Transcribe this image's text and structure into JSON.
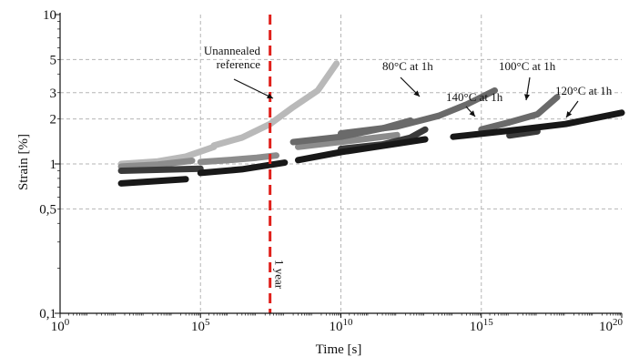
{
  "chart_data": {
    "type": "scatter",
    "xlabel": "Time [s]",
    "ylabel": "Strain [%]",
    "x_scale": "log",
    "y_scale": "log",
    "xlim": [
      1,
      1e+20
    ],
    "ylim": [
      0.1,
      10
    ],
    "grid": true,
    "x_ticks": [
      {
        "value": 1,
        "base": "10",
        "exp": "0"
      },
      {
        "value": 100000,
        "base": "10",
        "exp": "5"
      },
      {
        "value": 10000000000,
        "base": "10",
        "exp": "10"
      },
      {
        "value": 1000000000000000.0,
        "base": "10",
        "exp": "15"
      },
      {
        "value": 1e+20,
        "base": "10",
        "exp": "20"
      }
    ],
    "y_ticks": [
      {
        "value": 0.1,
        "label": "0,1"
      },
      {
        "value": 0.5,
        "label": "0,5"
      },
      {
        "value": 1,
        "label": "1"
      },
      {
        "value": 2,
        "label": "2"
      },
      {
        "value": 3,
        "label": "3"
      },
      {
        "value": 5,
        "label": "5"
      },
      {
        "value": 10,
        "label": "10"
      }
    ],
    "y_gridlines": [
      0.5,
      1,
      2,
      3,
      5
    ],
    "reference_line": {
      "x": 30000000,
      "label": "1 year",
      "color": "#e0201b"
    },
    "annotations": [
      {
        "id": "unannealed",
        "lines": [
          "Unannealed",
          "reference"
        ]
      },
      {
        "id": "c80",
        "lines": [
          "80°C at 1h"
        ]
      },
      {
        "id": "c100",
        "lines": [
          "100°C at 1h"
        ]
      },
      {
        "id": "c140",
        "lines": [
          "140°C at 1h"
        ]
      },
      {
        "id": "c120",
        "lines": [
          "120°C at 1h"
        ]
      }
    ],
    "series": [
      {
        "color": "#b9b9b9",
        "width": 7,
        "segments": [
          [
            [
              150,
              1.0
            ],
            [
              3000,
              1.04
            ],
            [
              30000,
              1.12
            ],
            [
              300000,
              1.3
            ]
          ],
          [
            [
              300000,
              1.33
            ],
            [
              3000000,
              1.5
            ],
            [
              30000000,
              1.85
            ],
            [
              200000000,
              2.4
            ],
            [
              1500000000,
              3.1
            ],
            [
              7000000000,
              4.7
            ]
          ]
        ]
      },
      {
        "color": "#8c8c8c",
        "width": 7,
        "segments": [
          [
            [
              150,
              0.96
            ],
            [
              3000,
              0.99
            ],
            [
              50000,
              1.05
            ]
          ],
          [
            [
              100000,
              1.03
            ],
            [
              1000000,
              1.06
            ],
            [
              10000000,
              1.1
            ],
            [
              50000000,
              1.14
            ]
          ],
          [
            [
              300000000,
              1.3
            ],
            [
              30000000000,
              1.44
            ],
            [
              1000000000000,
              1.56
            ]
          ]
        ]
      },
      {
        "color": "#6a6a6a",
        "width": 7,
        "segments": [
          [
            [
              200000000,
              1.4
            ],
            [
              10000000000,
              1.52
            ],
            [
              300000000000,
              1.73
            ],
            [
              3000000000000,
              1.95
            ]
          ],
          [
            [
              10000000000,
              1.6
            ],
            [
              1000000000000,
              1.78
            ],
            [
              30000000000000,
              2.1
            ],
            [
              300000000000000,
              2.5
            ],
            [
              3000000000000000,
              3.1
            ]
          ],
          [
            [
              1000000000000000.0,
              1.7
            ],
            [
              1e+16,
              1.9
            ],
            [
              1e+17,
              2.15
            ],
            [
              5e+17,
              2.8
            ]
          ]
        ]
      },
      {
        "color": "#3a3a3a",
        "width": 7,
        "segments": [
          [
            [
              150,
              0.9
            ],
            [
              100000,
              0.93
            ]
          ],
          [
            [
              10000000000,
              1.26
            ],
            [
              300000000000,
              1.35
            ],
            [
              3000000000000,
              1.5
            ],
            [
              10000000000000,
              1.7
            ]
          ],
          [
            [
              1e+16,
              1.55
            ],
            [
              1e+17,
              1.65
            ]
          ]
        ]
      },
      {
        "color": "#181818",
        "width": 7,
        "segments": [
          [
            [
              150,
              0.74
            ],
            [
              30000,
              0.79
            ]
          ],
          [
            [
              100000,
              0.87
            ],
            [
              3000000,
              0.92
            ],
            [
              100000000,
              1.02
            ]
          ],
          [
            [
              300000000,
              1.06
            ],
            [
              10000000000,
              1.2
            ],
            [
              300000000000,
              1.32
            ],
            [
              10000000000000,
              1.46
            ]
          ],
          [
            [
              100000000000000.0,
              1.52
            ],
            [
              1e+16,
              1.67
            ],
            [
              1e+18,
              1.85
            ],
            [
              1e+20,
              2.2
            ]
          ]
        ]
      }
    ]
  }
}
